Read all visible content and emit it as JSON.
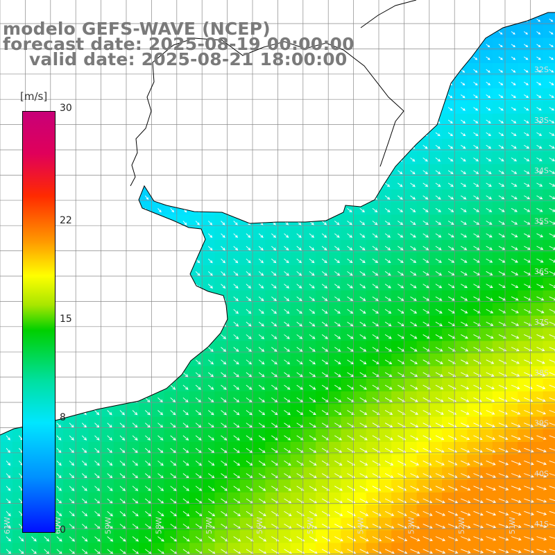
{
  "title": {
    "line1": "modelo GEFS-WAVE (NCEP)",
    "line2": "forecast date: 2025-08-19 00:00:00",
    "line3": "valid date: 2025-08-21 18:00:00"
  },
  "colorbar": {
    "unit": "[m/s]",
    "min": 0,
    "max": 30,
    "ticks": [
      "0",
      "8",
      "15",
      "22",
      "30"
    ],
    "tick_values": [
      0,
      8,
      15,
      22,
      30
    ],
    "colors": [
      "#0010ff",
      "#0090ff",
      "#00e6ff",
      "#00e0a0",
      "#00d000",
      "#a8e600",
      "#ffff00",
      "#ff9a00",
      "#ff2a00",
      "#e0005a",
      "#c80078"
    ]
  },
  "map": {
    "lon_range": [
      -61,
      -50.3
    ],
    "lat_range": [
      -41.2,
      -31.2
    ],
    "lat_labels": [
      "32S",
      "33S",
      "34S",
      "35S",
      "36S",
      "37S",
      "38S",
      "39S",
      "40S",
      "41S"
    ],
    "lon_labels": [
      "61W",
      "60W",
      "59W",
      "58W",
      "57W",
      "56W",
      "55W",
      "54W",
      "53W",
      "52W",
      "51W"
    ],
    "land_color": "#ffffff",
    "coast_color": "#000000",
    "grid_color": "#888888",
    "arrow_color": "#ffffff",
    "field": "wind speed with direction arrows"
  }
}
